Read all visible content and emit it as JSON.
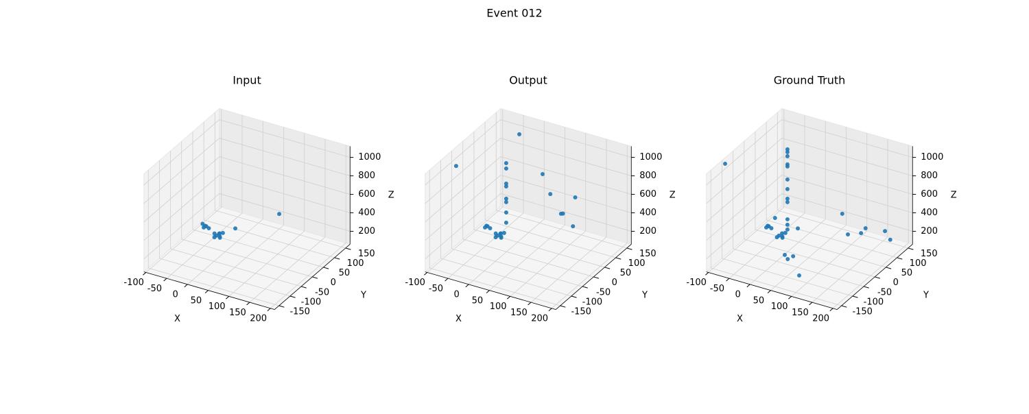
{
  "title": "Event 012",
  "chart_data": [
    {
      "type": "scatter3d",
      "title": "Input",
      "xlabel": "X",
      "ylabel": "Y",
      "zlabel": "Z",
      "xlim": [
        -105,
        210
      ],
      "ylim": [
        -170,
        170
      ],
      "zlim": [
        60,
        1120
      ],
      "xticks": [
        -100,
        -50,
        0,
        50,
        100,
        150,
        200
      ],
      "yticks": [
        -150,
        -100,
        -50,
        0,
        50,
        100,
        150
      ],
      "zticks": [
        200,
        400,
        600,
        800,
        1000
      ],
      "grid": true,
      "color": "#1f77b4",
      "x": [
        -75,
        -68,
        -72,
        -65,
        -78,
        -40,
        -35,
        -30,
        -42,
        -33,
        -28,
        -38,
        -45,
        -13,
        65
      ],
      "y": [
        50,
        42,
        38,
        48,
        44,
        35,
        40,
        32,
        30,
        38,
        42,
        44,
        36,
        70,
        122
      ],
      "z": [
        140,
        160,
        150,
        130,
        170,
        110,
        130,
        120,
        100,
        90,
        140,
        115,
        125,
        150,
        300
      ]
    },
    {
      "type": "scatter3d",
      "title": "Output",
      "xlabel": "X",
      "ylabel": "Y",
      "zlabel": "Z",
      "xlim": [
        -105,
        210
      ],
      "ylim": [
        -170,
        170
      ],
      "zlim": [
        60,
        1120
      ],
      "xticks": [
        -100,
        -50,
        0,
        50,
        100,
        150,
        200
      ],
      "yticks": [
        -150,
        -100,
        -50,
        0,
        50,
        100,
        150
      ],
      "zticks": [
        200,
        400,
        600,
        800,
        1000
      ],
      "grid": true,
      "color": "#1f77b4",
      "x": [
        -75,
        -68,
        -72,
        -65,
        -40,
        -35,
        -30,
        -42,
        -33,
        -28,
        -38,
        -45,
        -30,
        -30,
        -30,
        -30,
        -30,
        -30,
        -30,
        -30,
        -31,
        -79,
        46,
        63,
        115,
        85,
        88,
        94
      ],
      "y": [
        50,
        42,
        38,
        48,
        35,
        40,
        32,
        30,
        38,
        42,
        44,
        36,
        55,
        55,
        55,
        55,
        55,
        55,
        55,
        55,
        116,
        -79,
        77,
        80,
        95,
        87,
        90,
        124
      ],
      "z": [
        140,
        160,
        150,
        130,
        110,
        130,
        120,
        100,
        90,
        140,
        115,
        125,
        866,
        807,
        644,
        614,
        481,
        444,
        332,
        221,
        1050,
        1050,
        800,
        600,
        600,
        400,
        400,
        200
      ]
    },
    {
      "type": "scatter3d",
      "title": "Ground Truth",
      "xlabel": "X",
      "ylabel": "Y",
      "zlabel": "Z",
      "xlim": [
        -105,
        210
      ],
      "ylim": [
        -170,
        170
      ],
      "zlim": [
        60,
        1120
      ],
      "xticks": [
        -100,
        -50,
        0,
        50,
        100,
        150,
        200
      ],
      "yticks": [
        -150,
        -100,
        -50,
        0,
        50,
        100,
        150
      ],
      "zticks": [
        200,
        400,
        600,
        800,
        1000
      ],
      "grid": true,
      "color": "#1f77b4",
      "x": [
        -100,
        -30,
        -30,
        -30,
        -30,
        -30,
        -30,
        -30,
        -30,
        -30,
        -30,
        -30,
        -30,
        -75,
        -68,
        -72,
        -65,
        -40,
        -35,
        -30,
        -42,
        -33,
        -28,
        -13,
        -76,
        85,
        90,
        111,
        109,
        150,
        168,
        9,
        27,
        23,
        78
      ],
      "y": [
        -95,
        55,
        55,
        55,
        55,
        55,
        55,
        55,
        55,
        55,
        55,
        55,
        55,
        50,
        42,
        38,
        48,
        35,
        40,
        32,
        30,
        38,
        42,
        70,
        85,
        87,
        103,
        123,
        147,
        158,
        148,
        -30,
        -26,
        -43,
        -94
      ],
      "z": [
        1080,
        1015,
        985,
        941,
        852,
        830,
        689,
        585,
        481,
        444,
        258,
        199,
        147,
        140,
        160,
        150,
        130,
        110,
        130,
        120,
        100,
        90,
        140,
        150,
        150,
        400,
        150,
        150,
        150,
        150,
        100,
        100,
        100,
        100,
        100
      ]
    }
  ]
}
